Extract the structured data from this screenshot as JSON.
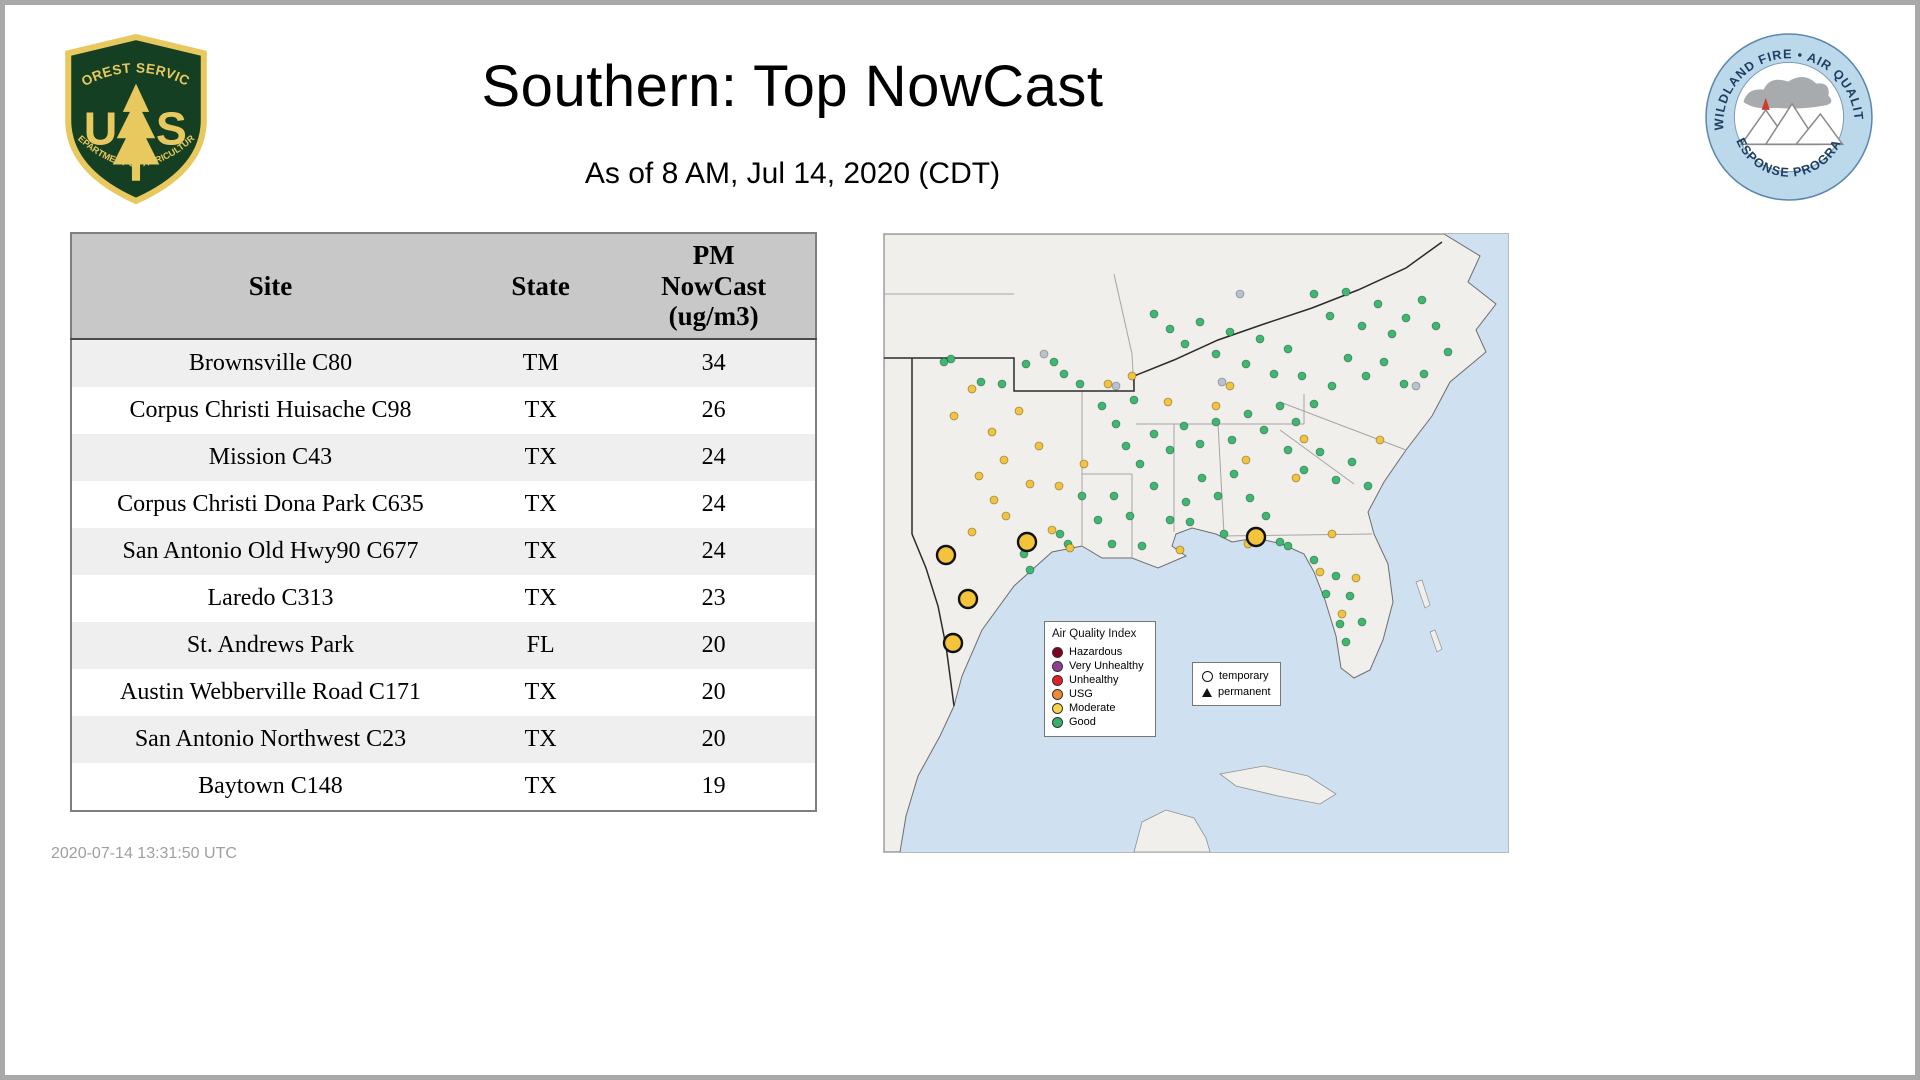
{
  "header": {
    "title": "Southern: Top NowCast",
    "subtitle": "As of  8 AM, Jul 14, 2020 (CDT)",
    "usfs_logo": {
      "arc_top": "FOREST SERVICE",
      "monogram_u": "U",
      "monogram_s": "S",
      "arc_bottom": "DEPARTMENT OF AGRICULTURE"
    },
    "wfaqrp_logo": {
      "arc_top": "WILDLAND FIRE • AIR QUALITY",
      "arc_bottom": "RESPONSE PROGRAM"
    }
  },
  "table": {
    "columns": [
      "Site",
      "State",
      "PM\nNowCast\n(ug/m3)"
    ],
    "rows": [
      [
        "Brownsville C80",
        "TM",
        "34"
      ],
      [
        "Corpus Christi Huisache C98",
        "TX",
        "26"
      ],
      [
        "Mission C43",
        "TX",
        "24"
      ],
      [
        "Corpus Christi Dona Park C635",
        "TX",
        "24"
      ],
      [
        "San Antonio Old Hwy90 C677",
        "TX",
        "24"
      ],
      [
        "Laredo C313",
        "TX",
        "23"
      ],
      [
        "St. Andrews Park",
        "FL",
        "20"
      ],
      [
        "Austin Webberville Road C171",
        "TX",
        "20"
      ],
      [
        "San Antonio Northwest C23",
        "TX",
        "20"
      ],
      [
        "Baytown C148",
        "TX",
        "19"
      ]
    ]
  },
  "footer": {
    "timestamp": "2020-07-14 13:31:50 UTC"
  },
  "map": {
    "colors": {
      "water": "#cfe1f1",
      "land": "#f1efec",
      "good": "#3eb871",
      "moderate": "#f2c33b",
      "nodata": "#b9c2cc"
    },
    "legend_aqi": {
      "title": "Air Quality Index",
      "items": [
        {
          "label": "Hazardous",
          "color": "#7e0023"
        },
        {
          "label": "Very Unhealthy",
          "color": "#8f3f97"
        },
        {
          "label": "Unhealthy",
          "color": "#e02028"
        },
        {
          "label": "USG",
          "color": "#f18b33"
        },
        {
          "label": "Moderate",
          "color": "#f7d54a"
        },
        {
          "label": "Good",
          "color": "#37b16e"
        }
      ]
    },
    "legend_type": {
      "temporary": "temporary",
      "permanent": "permanent"
    },
    "dots": {
      "good": [
        [
          67,
          125
        ],
        [
          97,
          148
        ],
        [
          142,
          130
        ],
        [
          170,
          128
        ],
        [
          196,
          150
        ],
        [
          218,
          172
        ],
        [
          232,
          190
        ],
        [
          250,
          166
        ],
        [
          270,
          80
        ],
        [
          286,
          95
        ],
        [
          301,
          110
        ],
        [
          316,
          88
        ],
        [
          332,
          120
        ],
        [
          346,
          98
        ],
        [
          362,
          130
        ],
        [
          376,
          105
        ],
        [
          390,
          140
        ],
        [
          404,
          115
        ],
        [
          418,
          142
        ],
        [
          430,
          60
        ],
        [
          446,
          82
        ],
        [
          462,
          58
        ],
        [
          478,
          92
        ],
        [
          494,
          70
        ],
        [
          508,
          100
        ],
        [
          522,
          84
        ],
        [
          538,
          66
        ],
        [
          552,
          92
        ],
        [
          564,
          118
        ],
        [
          540,
          140
        ],
        [
          520,
          150
        ],
        [
          500,
          128
        ],
        [
          482,
          142
        ],
        [
          464,
          124
        ],
        [
          448,
          152
        ],
        [
          430,
          170
        ],
        [
          412,
          188
        ],
        [
          396,
          172
        ],
        [
          380,
          196
        ],
        [
          364,
          180
        ],
        [
          348,
          206
        ],
        [
          332,
          188
        ],
        [
          316,
          210
        ],
        [
          300,
          192
        ],
        [
          286,
          216
        ],
        [
          270,
          200
        ],
        [
          256,
          230
        ],
        [
          242,
          212
        ],
        [
          404,
          216
        ],
        [
          420,
          236
        ],
        [
          436,
          218
        ],
        [
          452,
          246
        ],
        [
          468,
          228
        ],
        [
          484,
          252
        ],
        [
          350,
          240
        ],
        [
          334,
          262
        ],
        [
          318,
          244
        ],
        [
          366,
          264
        ],
        [
          382,
          282
        ],
        [
          302,
          268
        ],
        [
          286,
          286
        ],
        [
          270,
          252
        ],
        [
          246,
          282
        ],
        [
          230,
          262
        ],
        [
          214,
          286
        ],
        [
          198,
          262
        ],
        [
          340,
          300
        ],
        [
          396,
          308
        ],
        [
          430,
          326
        ],
        [
          452,
          342
        ],
        [
          466,
          362
        ],
        [
          478,
          388
        ],
        [
          462,
          408
        ],
        [
          456,
          390
        ],
        [
          442,
          360
        ],
        [
          404,
          312
        ],
        [
          180,
          140
        ],
        [
          140,
          320
        ],
        [
          176,
          300
        ],
        [
          184,
          310
        ],
        [
          146,
          336
        ],
        [
          228,
          310
        ],
        [
          258,
          312
        ],
        [
          306,
          288
        ],
        [
          60,
          128
        ],
        [
          118,
          150
        ]
      ],
      "moderate": [
        [
          88,
          155
        ],
        [
          70,
          182
        ],
        [
          108,
          198
        ],
        [
          120,
          226
        ],
        [
          95,
          242
        ],
        [
          110,
          266
        ],
        [
          122,
          282
        ],
        [
          88,
          298
        ],
        [
          168,
          296
        ],
        [
          186,
          314
        ],
        [
          146,
          250
        ],
        [
          135,
          177
        ],
        [
          155,
          212
        ],
        [
          200,
          230
        ],
        [
          175,
          252
        ],
        [
          346,
          152
        ],
        [
          362,
          226
        ],
        [
          332,
          172
        ],
        [
          284,
          168
        ],
        [
          248,
          142
        ],
        [
          224,
          150
        ],
        [
          420,
          205
        ],
        [
          412,
          244
        ],
        [
          496,
          206
        ],
        [
          436,
          338
        ],
        [
          458,
          380
        ],
        [
          472,
          344
        ],
        [
          364,
          310
        ],
        [
          296,
          316
        ],
        [
          448,
          300
        ]
      ],
      "nodata": [
        [
          160,
          120
        ],
        [
          232,
          152
        ],
        [
          356,
          60
        ],
        [
          532,
          152
        ],
        [
          338,
          148
        ]
      ],
      "temporary": [
        [
          62,
          321
        ],
        [
          143,
          308
        ],
        [
          84,
          365
        ],
        [
          69,
          409
        ],
        [
          372,
          303
        ]
      ]
    }
  },
  "chart_data": {
    "type": "table",
    "title": "Southern: Top NowCast",
    "subtitle": "As of 8 AM, Jul 14, 2020 (CDT)",
    "columns": [
      "Site",
      "State",
      "PM NowCast (ug/m3)"
    ],
    "rows": [
      [
        "Brownsville C80",
        "TM",
        34
      ],
      [
        "Corpus Christi Huisache C98",
        "TX",
        26
      ],
      [
        "Mission C43",
        "TX",
        24
      ],
      [
        "Corpus Christi Dona Park C635",
        "TX",
        24
      ],
      [
        "San Antonio Old Hwy90 C677",
        "TX",
        24
      ],
      [
        "Laredo C313",
        "TX",
        23
      ],
      [
        "St. Andrews Park",
        "FL",
        20
      ],
      [
        "Austin Webberville Road C171",
        "TX",
        20
      ],
      [
        "San Antonio Northwest C23",
        "TX",
        20
      ],
      [
        "Baytown C148",
        "TX",
        19
      ]
    ],
    "map_summary": {
      "legend": [
        "Hazardous",
        "Very Unhealthy",
        "Unhealthy",
        "USG",
        "Moderate",
        "Good"
      ],
      "dot_counts": {
        "Good": 86,
        "Moderate": 30,
        "NoData": 5,
        "TemporaryMonitors": 5
      }
    }
  }
}
